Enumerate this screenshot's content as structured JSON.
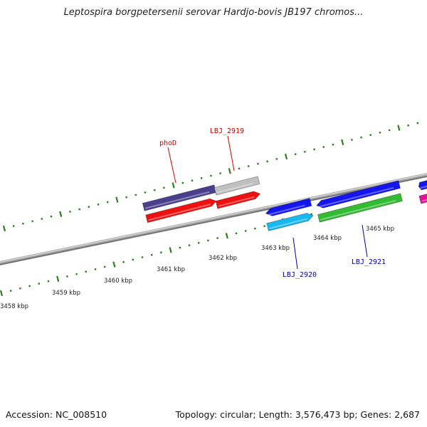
{
  "title": "Leptospira borgpetersenii serovar Hardjo-bovis JB197 chromos...",
  "footer": {
    "accession": "Accession: NC_008510",
    "summary": "Topology: circular; Length: 3,576,473 bp; Genes: 2,687"
  },
  "scale_labels": [
    "3458 kbp",
    "3459 kbp",
    "3460 kbp",
    "3461 kbp",
    "3462 kbp",
    "3463 kbp",
    "3464 kbp",
    "3465 kbp"
  ],
  "gene_labels": [
    {
      "name": "phoD",
      "color": "#cc0000"
    },
    {
      "name": "LBJ_2919",
      "color": "#cc0000"
    },
    {
      "name": "LBJ_2920",
      "color": "#0000aa"
    },
    {
      "name": "LBJ_2921",
      "color": "#0000aa"
    }
  ],
  "colors": {
    "backbone": "#8c8c8c",
    "ticks": "#2e7d1e",
    "dark_blue": "#4a3f8c",
    "grey": "#c0c0c0",
    "red": "#ee1111",
    "blue": "#1515ee",
    "cyan": "#1ab8f0",
    "green": "#33bb33",
    "magenta": "#e0109a"
  }
}
